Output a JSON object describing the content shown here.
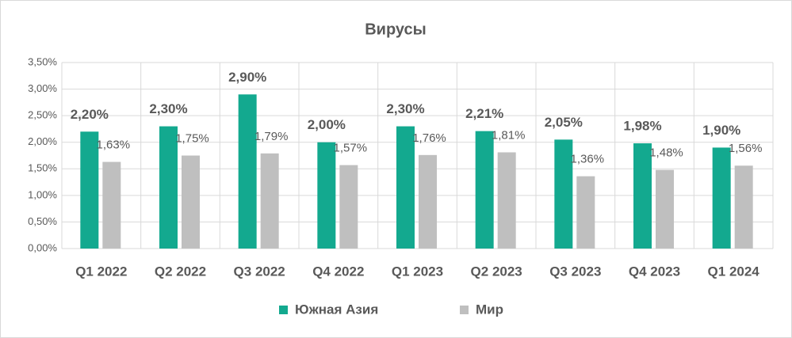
{
  "chart_data": {
    "type": "bar",
    "title": "Вирусы",
    "categories": [
      "Q1 2022",
      "Q2 2022",
      "Q3 2022",
      "Q4 2022",
      "Q1 2023",
      "Q2 2023",
      "Q3 2023",
      "Q4 2023",
      "Q1 2024"
    ],
    "series": [
      {
        "name": "Южная Азия",
        "color": "#13a98f",
        "values": [
          2.2,
          2.3,
          2.9,
          2.0,
          2.3,
          2.21,
          2.05,
          1.98,
          1.9
        ],
        "value_labels": [
          "2,20%",
          "2,30%",
          "2,90%",
          "2,00%",
          "2,30%",
          "2,21%",
          "2,05%",
          "1,98%",
          "1,90%"
        ]
      },
      {
        "name": "Мир",
        "color": "#bfbfbf",
        "values": [
          1.63,
          1.75,
          1.79,
          1.57,
          1.76,
          1.81,
          1.36,
          1.48,
          1.56
        ],
        "value_labels": [
          "1,63%",
          "1,75%",
          "1,79%",
          "1,57%",
          "1,76%",
          "1,81%",
          "1,36%",
          "1,48%",
          "1,56%"
        ]
      }
    ],
    "ylim": [
      0,
      3.5
    ],
    "yticks": [
      {
        "value": 0,
        "label": "0,00%"
      },
      {
        "value": 0.5,
        "label": "0,50%"
      },
      {
        "value": 1,
        "label": "1,00%"
      },
      {
        "value": 1.5,
        "label": "1,50%"
      },
      {
        "value": 2,
        "label": "2,00%"
      },
      {
        "value": 2.5,
        "label": "2,50%"
      },
      {
        "value": 3,
        "label": "3,00%"
      },
      {
        "value": 3.5,
        "label": "3,50%"
      }
    ],
    "grid": true,
    "legend": "bottom"
  }
}
